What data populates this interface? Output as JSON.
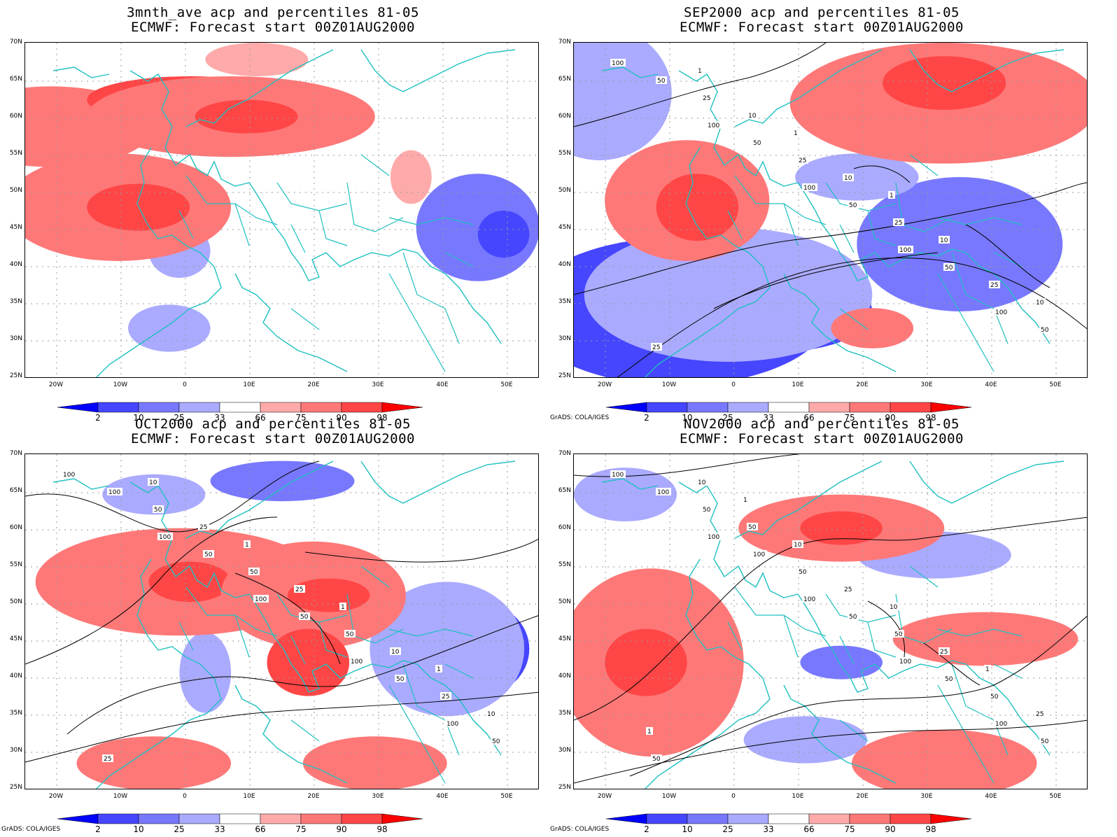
{
  "panels": [
    {
      "title1": "3mnth_ave acp and percentiles 81-05",
      "title2": "ECMWF: Forecast start 00Z01AUG2000",
      "credit": "",
      "contour_labels": []
    },
    {
      "title1": "SEP2000 acp and percentiles 81-05",
      "title2": "ECMWF: Forecast start 00Z01AUG2000",
      "credit": "GrADS: COLA/IGES",
      "contour_labels": [
        "100",
        "100",
        "100",
        "100",
        "100",
        "50",
        "50",
        "50",
        "50",
        "50",
        "25",
        "25",
        "25",
        "25",
        "25",
        "10",
        "10",
        "10",
        "10",
        "1",
        "1",
        "1"
      ]
    },
    {
      "title1": "OCT2000 acp and percentiles 81-05",
      "title2": "ECMWF: Forecast start 00Z01AUG2000",
      "credit": "GrADS: COLA/IGES",
      "contour_labels": [
        "100",
        "100",
        "100",
        "100",
        "100",
        "100",
        "50",
        "50",
        "50",
        "50",
        "50",
        "50",
        "50",
        "25",
        "25",
        "25",
        "25",
        "10",
        "10",
        "10",
        "1",
        "1",
        "1"
      ]
    },
    {
      "title1": "NOV2000 acp and percentiles 81-05",
      "title2": "ECMWF: Forecast start 00Z01AUG2000",
      "credit": "GrADS: COLA/IGES",
      "contour_labels": [
        "100",
        "100",
        "100",
        "100",
        "100",
        "100",
        "100",
        "50",
        "50",
        "50",
        "50",
        "50",
        "50",
        "50",
        "50",
        "50",
        "25",
        "25",
        "25",
        "10",
        "10",
        "10",
        "1",
        "1",
        "1"
      ]
    }
  ],
  "lat_labels": [
    "70N",
    "65N",
    "60N",
    "55N",
    "50N",
    "45N",
    "40N",
    "35N",
    "30N",
    "25N"
  ],
  "lon_labels": [
    "20W",
    "10W",
    "0",
    "10E",
    "20E",
    "30E",
    "40E",
    "50E"
  ],
  "colorbar": {
    "labels": [
      "2",
      "10",
      "25",
      "33",
      "66",
      "75",
      "90",
      "98"
    ],
    "colors": [
      "#0000ff",
      "#4646ff",
      "#7878ff",
      "#aaaaff",
      "#ffffff",
      "#ffaaaa",
      "#ff7878",
      "#ff4646",
      "#ff0000"
    ]
  },
  "colors": {
    "coast": "#20c0c0",
    "contour": "#000000",
    "grid": "#999999"
  }
}
